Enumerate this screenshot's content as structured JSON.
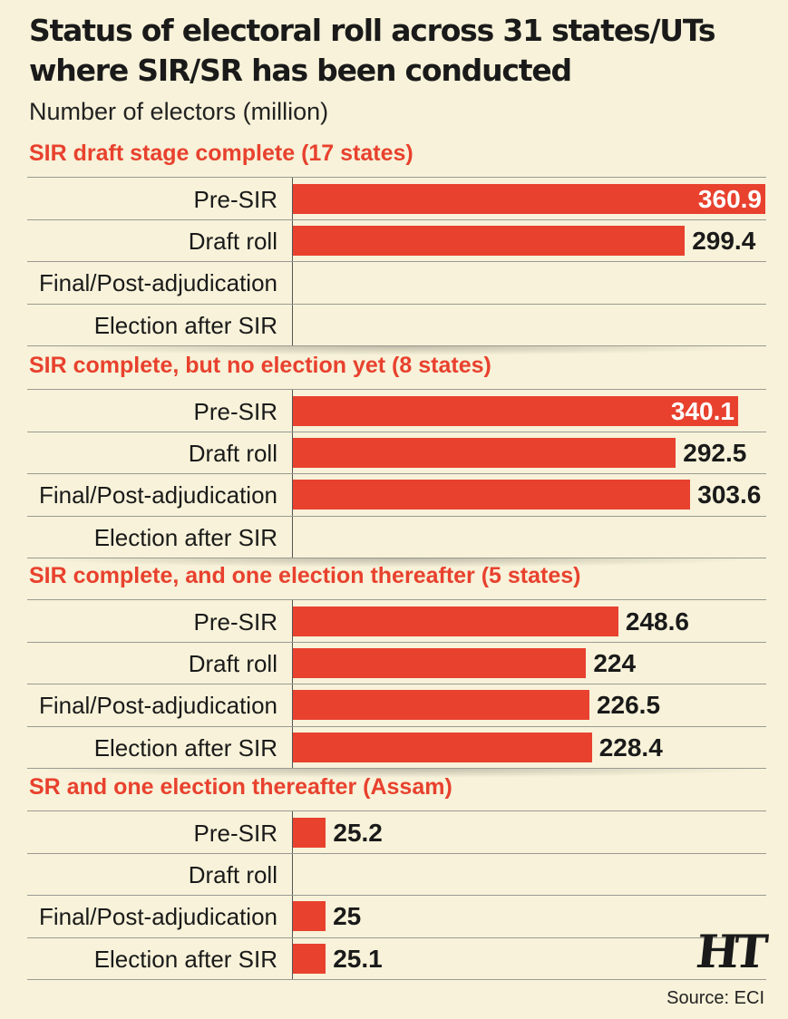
{
  "header": {
    "title": "Status of electoral roll across 31 states/UTs where SIR/SR has been conducted",
    "subtitle": "Number of electors (million)"
  },
  "footer": {
    "logo": "HT",
    "source": "Source: ECI"
  },
  "colors": {
    "bar": "#e8412e",
    "background": "#f7f2d9",
    "section_title": "#e8412e"
  },
  "chart_data": {
    "type": "bar",
    "orientation": "horizontal",
    "title": "Status of electoral roll across 31 states/UTs where SIR/SR has been conducted",
    "subtitle": "Number of electors (million)",
    "categories": [
      "Pre-SIR",
      "Draft roll",
      "Final/Post-adjudication",
      "Election after SIR"
    ],
    "xlim": [
      0,
      370
    ],
    "grid": false,
    "legend": "none",
    "groups": [
      {
        "name": "SIR draft stage complete (17 states)",
        "values": [
          360.9,
          299.4,
          null,
          null
        ],
        "labels": [
          "360.9",
          "299.4",
          "",
          ""
        ]
      },
      {
        "name": "SIR complete, but no election yet (8 states)",
        "values": [
          340.1,
          292.5,
          303.6,
          null
        ],
        "labels": [
          "340.1",
          "292.5",
          "303.6",
          ""
        ]
      },
      {
        "name": "SIR complete, and one election thereafter (5 states)",
        "values": [
          248.6,
          224,
          226.5,
          228.4
        ],
        "labels": [
          "248.6",
          "224",
          "226.5",
          "228.4"
        ]
      },
      {
        "name": "SR and one election thereafter (Assam)",
        "values": [
          25.2,
          null,
          25,
          25.1
        ],
        "labels": [
          "25.2",
          "",
          "25",
          "25.1"
        ]
      }
    ]
  }
}
